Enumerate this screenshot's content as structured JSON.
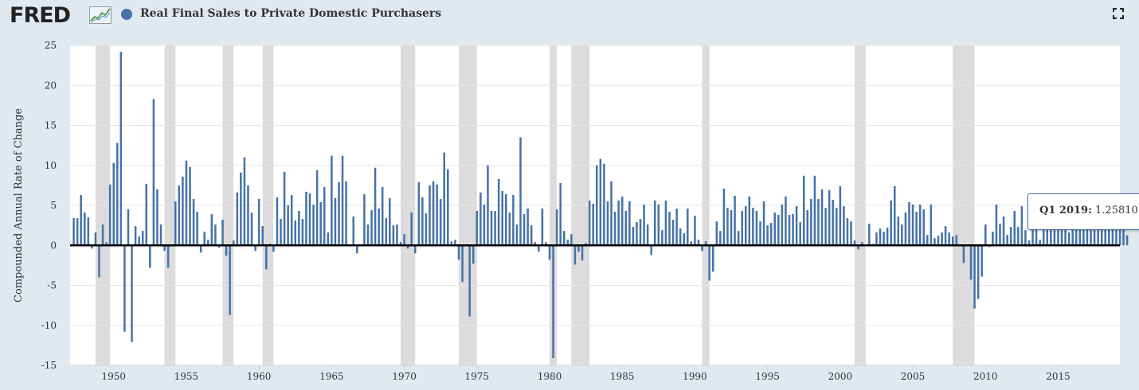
{
  "header": {
    "logo_text": "FRED",
    "series_title": "Real Final Sales to Private Domestic Purchasers",
    "series_color": "#4572a7",
    "fullscreen_icon": "fullscreen-icon"
  },
  "tooltip": {
    "date": "Q1 2019:",
    "value": "1.25810"
  },
  "chart_data": {
    "type": "bar",
    "ylabel": "Compounded Annual Rate of Change",
    "ylim": [
      -15,
      25
    ],
    "yticks": [
      -15,
      -10,
      -5,
      0,
      5,
      10,
      15,
      20,
      25
    ],
    "xlim": [
      1947.0,
      2019.25
    ],
    "xticks": [
      1950,
      1955,
      1960,
      1965,
      1970,
      1975,
      1980,
      1985,
      1990,
      1995,
      2000,
      2005,
      2010,
      2015
    ],
    "series_color": "#4572a7",
    "recession_color": "#dcdcdc",
    "recessions": [
      [
        1948.75,
        1949.75
      ],
      [
        1953.5,
        1954.25
      ],
      [
        1957.5,
        1958.25
      ],
      [
        1960.25,
        1961.0
      ],
      [
        1969.75,
        1970.75
      ],
      [
        1973.75,
        1975.0
      ],
      [
        1980.0,
        1980.5
      ],
      [
        1981.5,
        1982.75
      ],
      [
        1990.5,
        1991.0
      ],
      [
        2001.0,
        2001.75
      ],
      [
        2007.75,
        2009.25
      ]
    ],
    "start": 1947.25,
    "step": 0.25,
    "values": [
      3.4,
      3.4,
      6.3,
      4.1,
      3.5,
      -0.4,
      1.6,
      -4.0,
      2.6,
      0.4,
      7.6,
      10.3,
      12.8,
      24.2,
      -10.8,
      4.5,
      -12.1,
      2.4,
      1.1,
      1.8,
      7.7,
      -2.8,
      18.3,
      7.0,
      2.6,
      -0.7,
      -2.8,
      0.1,
      5.5,
      7.5,
      8.6,
      10.6,
      9.8,
      5.8,
      4.2,
      -0.9,
      1.7,
      0.7,
      3.9,
      2.6,
      -0.3,
      3.2,
      -1.3,
      -8.7,
      0.6,
      6.6,
      9.1,
      11.0,
      7.5,
      4.1,
      -0.7,
      5.8,
      2.4,
      -3.0,
      0.2,
      -0.8,
      6.0,
      3.3,
      9.2,
      5.0,
      6.3,
      3.1,
      4.3,
      3.3,
      6.7,
      6.5,
      5.1,
      9.4,
      5.4,
      7.3,
      1.6,
      11.2,
      5.9,
      7.9,
      11.2,
      8.0,
      0.1,
      3.6,
      -1.0,
      0.1,
      6.4,
      2.6,
      4.4,
      9.7,
      4.6,
      7.3,
      3.4,
      5.9,
      2.5,
      2.6,
      0.4,
      1.4,
      -0.4,
      4.1,
      -1.0,
      7.9,
      6.0,
      4.0,
      7.5,
      8.0,
      7.6,
      5.8,
      11.6,
      9.5,
      0.5,
      0.7,
      -1.8,
      -4.6,
      0.1,
      -8.9,
      -2.3,
      4.3,
      6.6,
      5.1,
      10.0,
      4.3,
      4.3,
      8.3,
      6.8,
      6.4,
      4.1,
      6.3,
      2.6,
      13.5,
      3.9,
      4.6,
      2.5,
      0.4,
      -0.8,
      4.6,
      0.4,
      -1.8,
      -14.1,
      4.5,
      7.8,
      1.8,
      0.7,
      1.4,
      -2.4,
      -0.8,
      -1.9,
      0.3,
      5.6,
      5.2,
      10.0,
      10.8,
      10.2,
      5.5,
      8.0,
      4.2,
      5.6,
      6.1,
      4.3,
      5.5,
      2.3,
      2.9,
      3.3,
      5.1,
      2.6,
      -1.2,
      5.6,
      5.1,
      1.9,
      5.6,
      4.2,
      3.2,
      4.6,
      2.1,
      1.5,
      4.6,
      0.5,
      3.7,
      0.7,
      -0.7,
      0.5,
      -4.4,
      -3.3,
      3.0,
      1.8,
      7.1,
      4.7,
      4.4,
      6.2,
      1.8,
      4.3,
      4.9,
      6.1,
      4.7,
      4.3,
      3.0,
      5.5,
      2.5,
      2.8,
      4.1,
      3.8,
      5.1,
      6.1,
      3.8,
      3.9,
      4.9,
      2.9,
      8.7,
      4.4,
      5.8,
      8.7,
      5.8,
      7.0,
      4.7,
      6.9,
      5.7,
      4.7,
      7.4,
      4.9,
      3.4,
      3.0,
      0.6,
      -0.5,
      0.4,
      0.1,
      2.7,
      0.2,
      1.6,
      2.1,
      1.7,
      2.2,
      5.6,
      7.4,
      3.6,
      2.6,
      4.1,
      5.4,
      5.1,
      4.2,
      5.1,
      4.5,
      1.3,
      5.1,
      0.9,
      1.2,
      1.6,
      2.4,
      1.6,
      1.1,
      1.3,
      0.1,
      -2.2,
      0.1,
      -4.3,
      -7.9,
      -6.7,
      -3.9,
      2.6,
      -0.2,
      1.7,
      5.1,
      2.7,
      3.6,
      1.3,
      2.3,
      4.3,
      2.3,
      4.9,
      1.9,
      0.6,
      2.0,
      3.0,
      0.7,
      2.5,
      3.0,
      3.0,
      2.8,
      3.1,
      2.7,
      2.4,
      1.6,
      2.8,
      2.4,
      2.2,
      3.0,
      2.2,
      2.9,
      2.5,
      3.1,
      2.8,
      2.6,
      2.9,
      2.4,
      3.0,
      2.9,
      2.0,
      1.26
    ]
  }
}
